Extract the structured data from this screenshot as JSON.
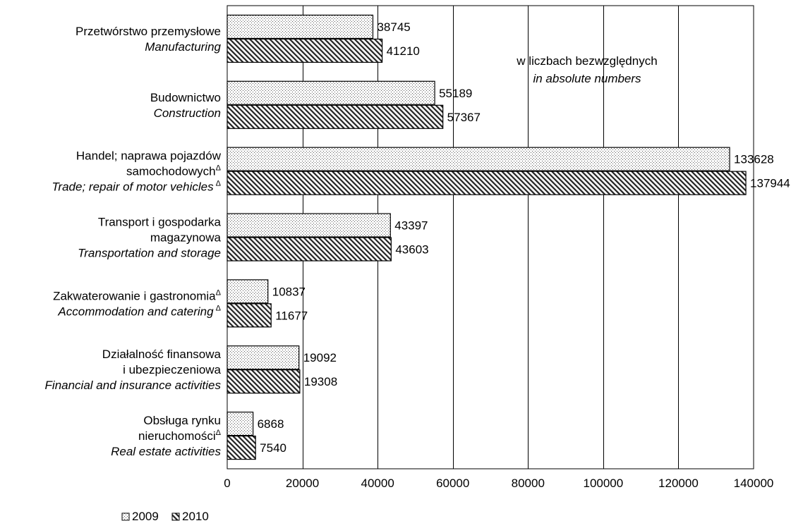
{
  "chart_data": {
    "type": "bar",
    "orientation": "horizontal",
    "categories": [
      {
        "pl": [
          "Przetwórstwo przemysłowe"
        ],
        "en": [
          "Manufacturing"
        ]
      },
      {
        "pl": [
          "Budownictwo"
        ],
        "en": [
          "Construction"
        ]
      },
      {
        "pl": [
          "Handel; naprawa pojazdów",
          "samochodowych"
        ],
        "en": [
          "Trade; repair of motor vehicles"
        ],
        "pl_mark_line": 1,
        "en_mark_line": 0
      },
      {
        "pl": [
          "Transport i gospodarka",
          "magazynowa"
        ],
        "en": [
          "Transportation and storage"
        ]
      },
      {
        "pl": [
          "Zakwaterowanie i gastronomia"
        ],
        "en": [
          "Accommodation and catering"
        ],
        "pl_mark_line": 0,
        "en_mark_line": 0
      },
      {
        "pl": [
          "Działalność finansowa",
          "i ubezpieczeniowa"
        ],
        "en": [
          "Financial and insurance activities"
        ]
      },
      {
        "pl": [
          "Obsługa rynku",
          "nieruchomości"
        ],
        "en": [
          "Real estate activities"
        ],
        "pl_mark_line": 1
      }
    ],
    "series": [
      {
        "name": "2009",
        "pattern": "dots",
        "values": [
          38745,
          55189,
          133628,
          43397,
          10837,
          19092,
          6868
        ]
      },
      {
        "name": "2010",
        "pattern": "hatch",
        "values": [
          41210,
          57367,
          137944,
          43603,
          11677,
          19308,
          7540
        ]
      }
    ],
    "xlim": [
      0,
      140000
    ],
    "xticks": [
      0,
      20000,
      40000,
      60000,
      80000,
      100000,
      120000,
      140000
    ],
    "grid": "vertical",
    "footnote_mark": "Δ",
    "annotation": {
      "pl": "w liczbach bezwzględnych",
      "en": "in absolute numbers"
    },
    "legend_position": "bottom-left"
  }
}
